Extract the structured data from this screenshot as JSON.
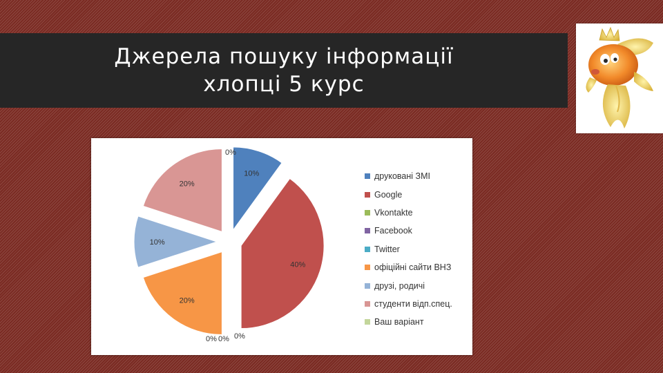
{
  "slide": {
    "title_line1": "Джерела пошуку інформації",
    "title_line2": "хлопці 5 курс"
  },
  "chart_data": {
    "type": "pie",
    "exploded": true,
    "categories": [
      "друковані ЗМІ",
      "Google",
      "Vkontakte",
      "Facebook",
      "Twitter",
      "офіційні сайти ВНЗ",
      "друзі, родичі",
      "студенти відп.спец.",
      "Ваш варіант"
    ],
    "values": [
      10,
      40,
      0,
      0,
      0,
      20,
      10,
      20,
      0
    ],
    "data_labels": [
      "10%",
      "40%",
      "0%",
      "0%",
      "0%",
      "20%",
      "10%",
      "20%",
      "0%"
    ],
    "colors": [
      "#4f81bd",
      "#c0504d",
      "#9bbb59",
      "#8064a2",
      "#4bacc6",
      "#f79646",
      "#95b3d7",
      "#d99694",
      "#c3d69b"
    ],
    "legend_position": "right"
  }
}
